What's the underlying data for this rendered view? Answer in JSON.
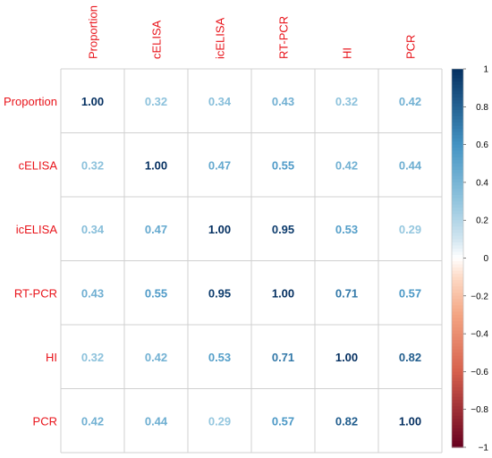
{
  "chart_data": {
    "type": "heatmap",
    "variables": [
      "Proportion",
      "cELISA",
      "icELISA",
      "RT-PCR",
      "HI",
      "PCR"
    ],
    "matrix": [
      [
        1.0,
        0.32,
        0.34,
        0.43,
        0.32,
        0.42
      ],
      [
        0.32,
        1.0,
        0.47,
        0.55,
        0.42,
        0.44
      ],
      [
        0.34,
        0.47,
        1.0,
        0.95,
        0.53,
        0.29
      ],
      [
        0.43,
        0.55,
        0.95,
        1.0,
        0.71,
        0.57
      ],
      [
        0.32,
        0.42,
        0.53,
        0.71,
        1.0,
        0.82
      ],
      [
        0.42,
        0.44,
        0.29,
        0.57,
        0.82,
        1.0
      ]
    ],
    "cell_labels": [
      [
        "1.00",
        "0.32",
        "0.34",
        "0.43",
        "0.32",
        "0.42"
      ],
      [
        "0.32",
        "1.00",
        "0.47",
        "0.55",
        "0.42",
        "0.44"
      ],
      [
        "0.34",
        "0.47",
        "1.00",
        "0.95",
        "0.53",
        "0.29"
      ],
      [
        "0.43",
        "0.55",
        "0.95",
        "1.00",
        "0.71",
        "0.57"
      ],
      [
        "0.32",
        "0.42",
        "0.53",
        "0.71",
        "1.00",
        "0.82"
      ],
      [
        "0.42",
        "0.44",
        "0.29",
        "0.57",
        "0.82",
        "1.00"
      ]
    ],
    "colorbar": {
      "range": [
        -1,
        1
      ],
      "ticks": [
        "1",
        "0.8",
        "0.6",
        "0.4",
        "0.2",
        "0",
        "−0.2",
        "−0.4",
        "−0.6",
        "−0.8",
        "−1"
      ],
      "tick_values": [
        1,
        0.8,
        0.6,
        0.4,
        0.2,
        0,
        -0.2,
        -0.4,
        -0.6,
        -0.8,
        -1
      ]
    },
    "label_color": "#e8131a",
    "grid": true
  }
}
